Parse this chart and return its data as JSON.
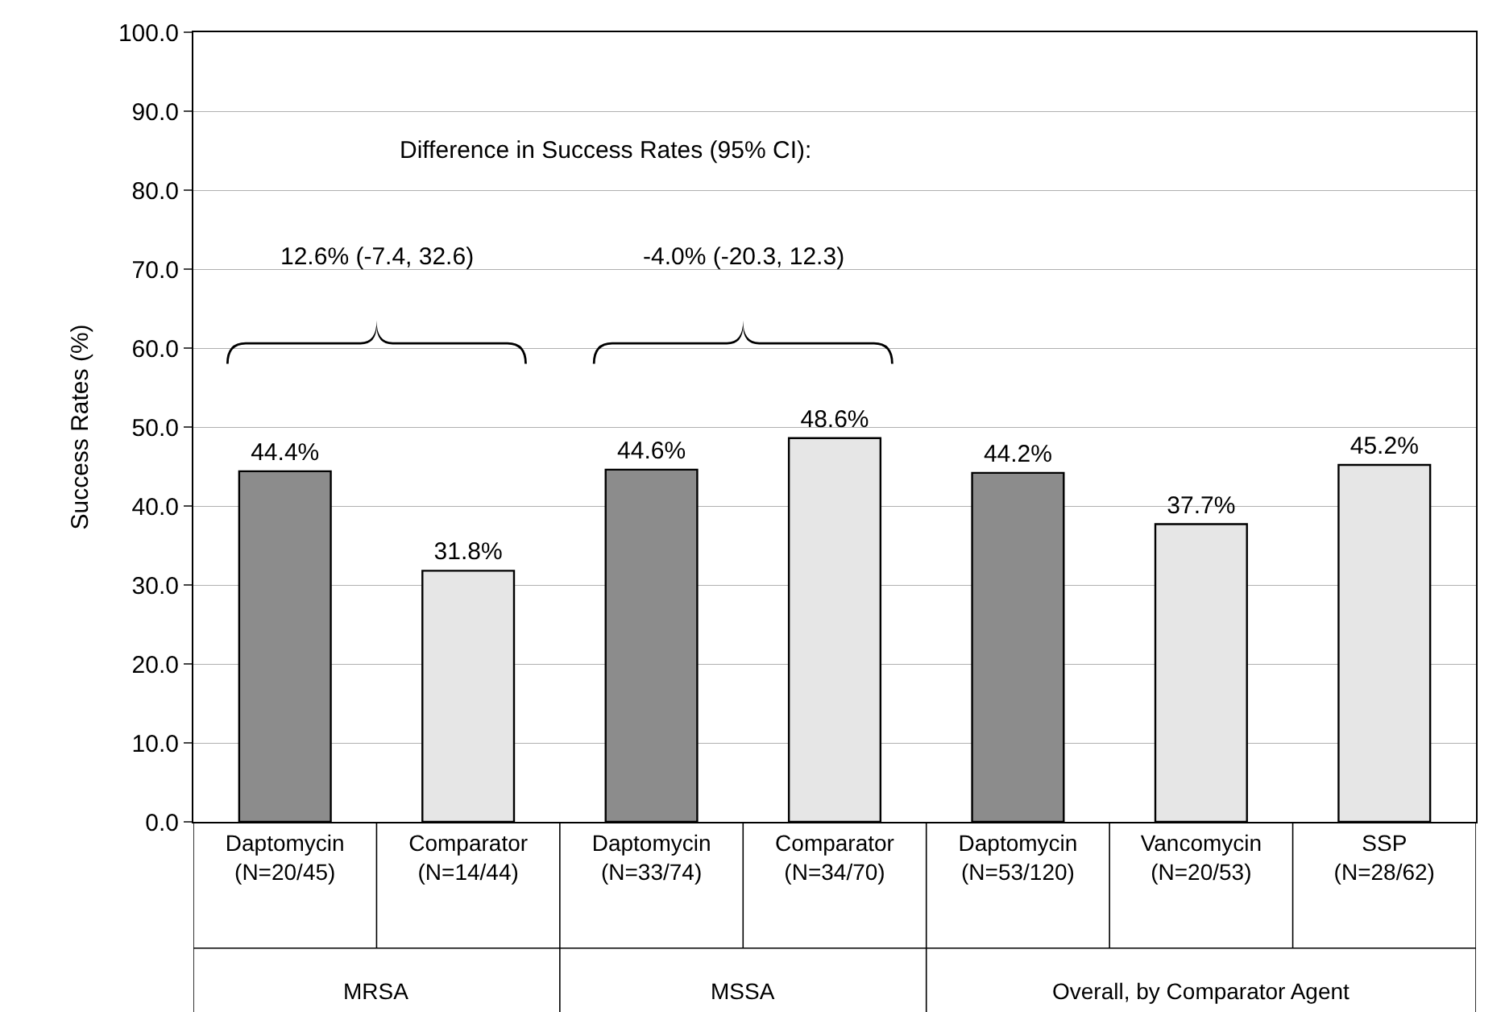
{
  "chart_data": {
    "type": "bar",
    "ylabel": "Success Rates (%)",
    "categories": [
      "Daptomycin\n(N=20/45)",
      "Comparator\n(N=14/44)",
      "Daptomycin\n(N=33/74)",
      "Comparator\n(N=34/70)",
      "Daptomycin\n(N=53/120)",
      "Vancomycin\n(N=20/53)",
      "SSP\n(N=28/62)"
    ],
    "values": [
      44.4,
      31.8,
      44.6,
      48.6,
      44.2,
      37.7,
      45.2
    ],
    "colors": [
      "#8c8c8c",
      "#e6e6e6",
      "#8c8c8c",
      "#e6e6e6",
      "#8c8c8c",
      "#e6e6e6",
      "#e6e6e6"
    ],
    "value_labels": [
      "44.4%",
      "31.8%",
      "44.6%",
      "48.6%",
      "44.2%",
      "37.7%",
      "45.2%"
    ],
    "ylim": [
      0,
      100
    ],
    "yticks": [
      {
        "value": 0,
        "label": "0.0"
      },
      {
        "value": 10,
        "label": "10.0"
      },
      {
        "value": 20,
        "label": "20.0"
      },
      {
        "value": 30,
        "label": "30.0"
      },
      {
        "value": 40,
        "label": "40.0"
      },
      {
        "value": 50,
        "label": "50.0"
      },
      {
        "value": 60,
        "label": "60.0"
      },
      {
        "value": 70,
        "label": "70.0"
      },
      {
        "value": 80,
        "label": "80.0"
      },
      {
        "value": 90,
        "label": "90.0"
      },
      {
        "value": 100,
        "label": "100.0"
      }
    ],
    "grid": "y",
    "annotations": [
      "Difference in Success Rates (95% CI):",
      "12.6% (-7.4, 32.6)",
      "-4.0% (-20.3, 12.3)",
      "MRSA",
      "MSSA",
      "Overall, by Comparator Agent"
    ]
  }
}
